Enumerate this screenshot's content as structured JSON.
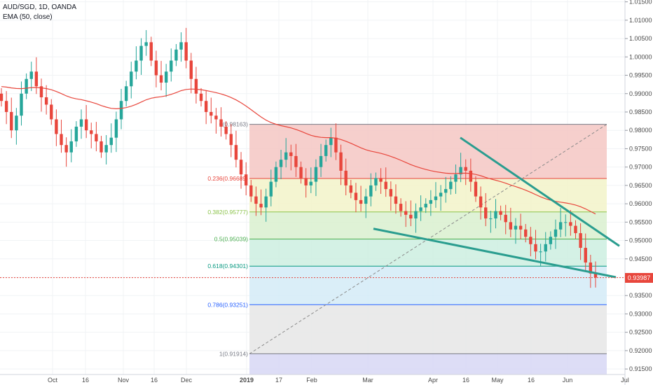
{
  "legend": {
    "symbol_line": "AUD/SGD, 1D, OANDA",
    "indicator_line": "EMA (50, close)"
  },
  "last_price_tag": "0.93987",
  "colors": {
    "up": "#e8463c",
    "down": "#26a69a",
    "ema": "#e8463c",
    "trendline": "#2a9d8f",
    "grid": "#f0f3f5"
  },
  "chart_data": {
    "type": "candlestick",
    "title": "AUD/SGD, 1D, OANDA",
    "ylim": [
      0.9135,
      1.0155
    ],
    "y_ticks": [
      "1.01500",
      "1.01000",
      "1.00500",
      "1.00000",
      "0.99500",
      "0.99000",
      "0.98500",
      "0.98000",
      "0.97500",
      "0.97000",
      "0.96500",
      "0.96000",
      "0.95500",
      "0.95000",
      "0.94500",
      "0.94000",
      "0.93500",
      "0.93000",
      "0.92500",
      "0.92000",
      "0.91500"
    ],
    "x_ticks": [
      "Oct",
      "16",
      "Nov",
      "16",
      "Dec",
      "2019",
      "17",
      "Feb",
      "Mar",
      "Apr",
      "16",
      "May",
      "16",
      "Jun",
      "Jul"
    ],
    "last_price": 0.93987,
    "ema_label": "EMA (50, close)",
    "candles_close_approx": [
      0.988,
      0.985,
      0.98,
      0.984,
      0.99,
      0.994,
      0.996,
      0.992,
      0.989,
      0.987,
      0.983,
      0.979,
      0.976,
      0.974,
      0.977,
      0.981,
      0.983,
      0.98,
      0.979,
      0.977,
      0.974,
      0.976,
      0.978,
      0.983,
      0.988,
      0.992,
      0.996,
      0.999,
      1.003,
      1.004,
      0.999,
      0.995,
      0.993,
      0.996,
      0.999,
      1.002,
      1.004,
      0.999,
      0.994,
      0.99,
      0.988,
      0.985,
      0.984,
      0.983,
      0.981,
      0.979,
      0.976,
      0.972,
      0.968,
      0.965,
      0.962,
      0.96,
      0.959,
      0.962,
      0.966,
      0.97,
      0.972,
      0.974,
      0.973,
      0.97,
      0.967,
      0.965,
      0.966,
      0.97,
      0.973,
      0.976,
      0.978,
      0.974,
      0.969,
      0.965,
      0.963,
      0.961,
      0.96,
      0.962,
      0.965,
      0.967,
      0.966,
      0.964,
      0.962,
      0.96,
      0.958,
      0.957,
      0.956,
      0.958,
      0.959,
      0.96,
      0.961,
      0.962,
      0.963,
      0.964,
      0.966,
      0.968,
      0.97,
      0.969,
      0.966,
      0.962,
      0.959,
      0.956,
      0.956,
      0.958,
      0.957,
      0.955,
      0.953,
      0.954,
      0.953,
      0.951,
      0.949,
      0.947,
      0.947,
      0.949,
      0.951,
      0.953,
      0.955,
      0.955,
      0.954,
      0.952,
      0.948,
      0.944,
      0.941,
      0.9399
    ],
    "fibonacci": {
      "levels": [
        {
          "label": "0(0.98163)",
          "value": 0.98163,
          "color": "#787b86"
        },
        {
          "label": "0.236(0.96689)",
          "value": 0.96689,
          "color": "#e8463c"
        },
        {
          "label": "0.382(0.95777)",
          "value": 0.95777,
          "color": "#8bc34a"
        },
        {
          "label": "0.5(0.95039)",
          "value": 0.95039,
          "color": "#4caf50"
        },
        {
          "label": "0.618(0.94301)",
          "value": 0.94301,
          "color": "#089981"
        },
        {
          "label": "0.786(0.93251)",
          "value": 0.93251,
          "color": "#2962ff"
        },
        {
          "label": "1(0.91914)",
          "value": 0.91914,
          "color": "#787b86"
        }
      ],
      "bands": [
        {
          "from": 0.98163,
          "to": 0.96689,
          "color": "#f4c7c3"
        },
        {
          "from": 0.96689,
          "to": 0.95777,
          "color": "#f2f3c9"
        },
        {
          "from": 0.95777,
          "to": 0.95039,
          "color": "#d9f0cf"
        },
        {
          "from": 0.95039,
          "to": 0.94301,
          "color": "#cdefe0"
        },
        {
          "from": 0.94301,
          "to": 0.93251,
          "color": "#d3ebf7"
        },
        {
          "from": 0.93251,
          "to": 0.91914,
          "color": "#e6e6e6"
        },
        {
          "from": 0.91914,
          "to": 0.9135,
          "color": "#d7d7f5"
        }
      ]
    }
  }
}
